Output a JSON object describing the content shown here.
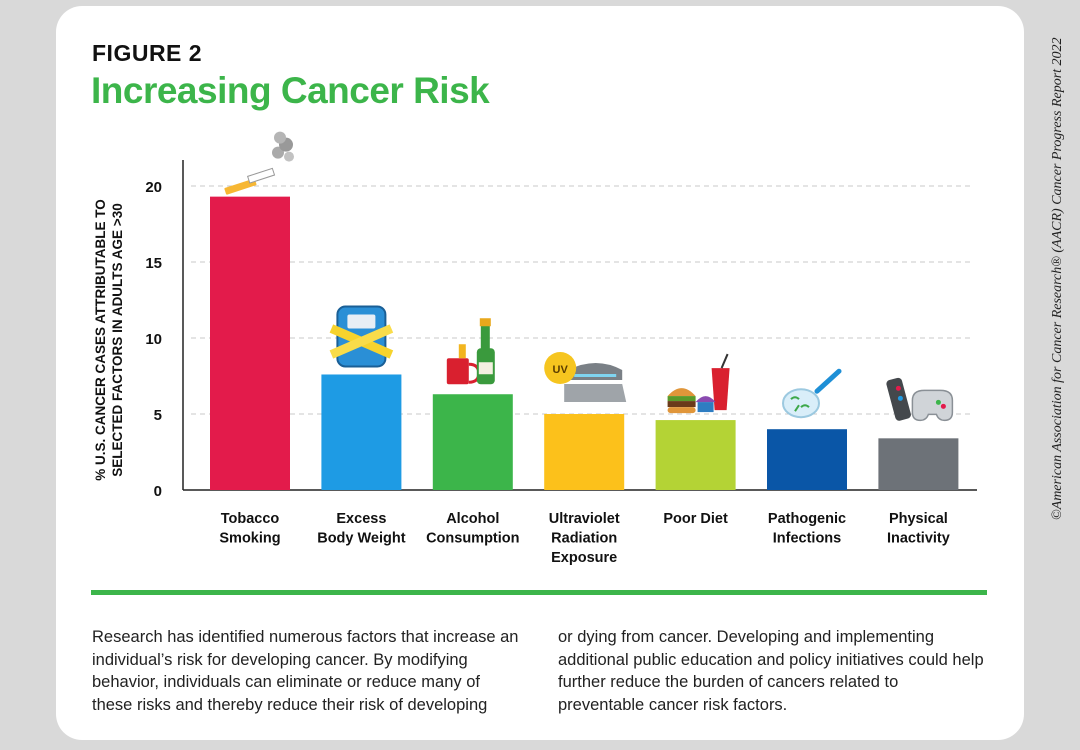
{
  "figure_label": "FIGURE 2",
  "figure_title": "Increasing Cancer Risk",
  "copyright": "©American Association for Cancer Research® (AACR) Cancer Progress Report 2022",
  "text": {
    "col1": "Research has identified numerous factors that increase an individual’s risk for developing cancer. By modifying behavior, individuals can eliminate or reduce many of these risks and thereby reduce their risk of developing",
    "col2": "or dying from cancer. Developing and implementing additional public education and policy initiatives could help further reduce the burden of cancers related to preventable cancer risk factors."
  },
  "chart_data": {
    "type": "bar",
    "ylabel": [
      "% U.S. CANCER CASES ATTRIBUTABLE TO",
      "SELECTED FACTORS IN ADULTS AGE >30"
    ],
    "ylim": [
      0,
      22
    ],
    "yticks": [
      0,
      5,
      10,
      15,
      20
    ],
    "grid": true,
    "categories": [
      [
        "Tobacco",
        "Smoking"
      ],
      [
        "Excess",
        "Body Weight"
      ],
      [
        "Alcohol",
        "Consumption"
      ],
      [
        "Ultraviolet",
        "Radiation",
        "Exposure"
      ],
      [
        "Poor Diet"
      ],
      [
        "Pathogenic",
        "Infections"
      ],
      [
        "Physical",
        "Inactivity"
      ]
    ],
    "values": [
      19.3,
      7.6,
      6.3,
      5.0,
      4.6,
      4.0,
      3.4
    ],
    "colors": [
      "#e31b4b",
      "#1e9be4",
      "#3cb54a",
      "#fcc11b",
      "#b4d335",
      "#0a56a7",
      "#6d7278"
    ],
    "icons": [
      "cigarette-icon",
      "scale-icon",
      "alcohol-icon",
      "tanning-bed-icon",
      "fast-food-icon",
      "petri-dish-icon",
      "remote-controller-icon"
    ],
    "icon_text": {
      "uv": "UV"
    }
  }
}
